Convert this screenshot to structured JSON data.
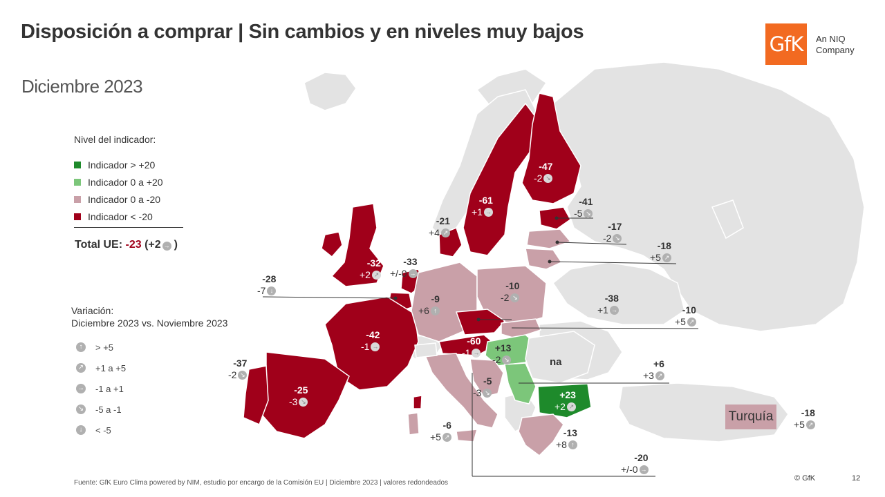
{
  "header": {
    "title": "Disposición a comprar | Sin cambios y en niveles muy bajos",
    "subtitle": "Diciembre 2023"
  },
  "logo": {
    "mark": "GfK",
    "tagline_1": "An NIQ",
    "tagline_2": "Company"
  },
  "legend": {
    "title": "Nivel del indicador:",
    "items": [
      {
        "label": "Indicador > +20",
        "color": "#1e8a2b"
      },
      {
        "label": "Indicador 0 a +20",
        "color": "#7cc67a"
      },
      {
        "label": "Indicador 0 a -20",
        "color": "#c9a0a8"
      },
      {
        "label": "Indicador < -20",
        "color": "#a0001a"
      }
    ]
  },
  "total": {
    "prefix": "Total UE:",
    "value": "-23",
    "change": "(+2",
    "suffix": ")"
  },
  "variation": {
    "title_1": "Variación:",
    "title_2": "Diciembre 2023 vs. Noviembre 2023",
    "items": [
      {
        "icon": "arrow-up-icon",
        "glyph": "↑",
        "label": "> +5"
      },
      {
        "icon": "arrow-up-right-icon",
        "glyph": "↗",
        "label": "+1 a +5"
      },
      {
        "icon": "arrow-right-icon",
        "glyph": "→",
        "label": "-1 a +1"
      },
      {
        "icon": "arrow-down-right-icon",
        "glyph": "↘",
        "label": "-5 a -1"
      },
      {
        "icon": "arrow-down-icon",
        "glyph": "↓",
        "label": "< -5"
      }
    ]
  },
  "countries": [
    {
      "id": "finlandia",
      "value": "-47",
      "change": "-2",
      "glyph": "↘"
    },
    {
      "id": "suecia",
      "value": "-61",
      "change": "+1",
      "glyph": "→"
    },
    {
      "id": "estonia",
      "value": "-41",
      "change": "-5",
      "glyph": "↘"
    },
    {
      "id": "letonia",
      "value": "-17",
      "change": "-2",
      "glyph": "↘"
    },
    {
      "id": "lituania",
      "value": "-18",
      "change": "+5",
      "glyph": "↗"
    },
    {
      "id": "dinamarca",
      "value": "-21",
      "change": "+4",
      "glyph": "↗"
    },
    {
      "id": "paises-bajos",
      "value": "-33",
      "change": "+/-0",
      "glyph": "→"
    },
    {
      "id": "irlanda",
      "value": "-32",
      "change": "+2",
      "glyph": "↗"
    },
    {
      "id": "belgica",
      "value": "-28",
      "change": "-7",
      "glyph": "↓"
    },
    {
      "id": "alemania",
      "value": "-9",
      "change": "+6",
      "glyph": "↑"
    },
    {
      "id": "polonia",
      "value": "-10",
      "change": "-2",
      "glyph": "↘"
    },
    {
      "id": "eslovaquia",
      "value": "-38",
      "change": "+1",
      "glyph": "→"
    },
    {
      "id": "rumania-label",
      "value": "-10",
      "change": "+5",
      "glyph": "↗"
    },
    {
      "id": "francia",
      "value": "-42",
      "change": "-1",
      "glyph": "→"
    },
    {
      "id": "austria",
      "value": "-60",
      "change": "-1",
      "glyph": "→"
    },
    {
      "id": "hungria",
      "value": "+13",
      "change": "-2",
      "glyph": "↘"
    },
    {
      "id": "portugal",
      "value": "-37",
      "change": "-2",
      "glyph": "↘"
    },
    {
      "id": "espana",
      "value": "-25",
      "change": "-3",
      "glyph": "↘"
    },
    {
      "id": "croacia",
      "value": "-5",
      "change": "-3",
      "glyph": "↘"
    },
    {
      "id": "grecia-norte",
      "value": "+6",
      "change": "+3",
      "glyph": "↗"
    },
    {
      "id": "bulgaria",
      "value": "+23",
      "change": "+2",
      "glyph": "↗"
    },
    {
      "id": "italia",
      "value": "-6",
      "change": "+5",
      "glyph": "↗"
    },
    {
      "id": "grecia",
      "value": "-13",
      "change": "+8",
      "glyph": "↑"
    },
    {
      "id": "chipre",
      "value": "-20",
      "change": "+/-0",
      "glyph": "→"
    },
    {
      "id": "turquia",
      "value": "-18",
      "change": "+5",
      "glyph": "↗"
    }
  ],
  "na_label": "na",
  "turquia_label": "Turquía",
  "footer": {
    "source": "Fuente: GfK Euro Clima powered by NIM, estudio por encargo de la Comisión EU | Diciembre 2023 | valores redondeados",
    "copyright": "© GfK",
    "page": "12"
  }
}
